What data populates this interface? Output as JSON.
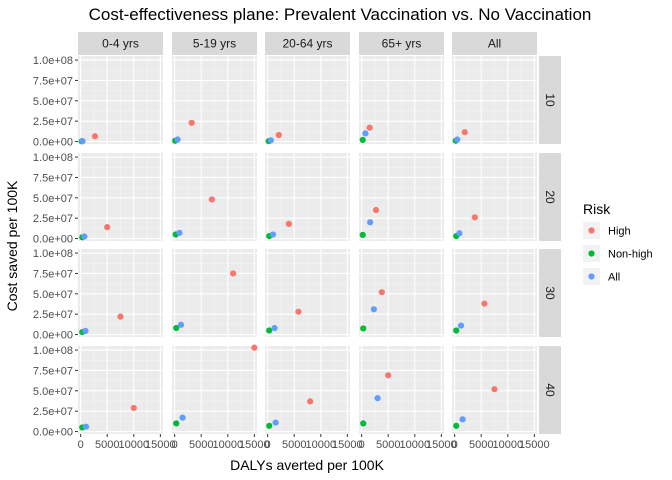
{
  "chart_data": {
    "type": "scatter",
    "title": "Cost-effectiveness plane: Prevalent Vaccination vs. No Vaccination",
    "xlabel": "DALYs averted per 100K",
    "ylabel": "Cost saved per 100K",
    "xlim": [
      -500,
      15500
    ],
    "ylim": [
      -3000000,
      105000000
    ],
    "x_ticks": [
      0,
      5000,
      10000,
      15000
    ],
    "x_tick_labels": [
      "0",
      "5000",
      "10000",
      "15000"
    ],
    "y_ticks": [
      0,
      25000000,
      50000000,
      75000000,
      100000000
    ],
    "y_tick_labels": [
      "0.0e+00",
      "2.5e+07",
      "5.0e+07",
      "7.5e+07",
      "1.0e+08"
    ],
    "columns": [
      "0-4 yrs",
      "5-19 yrs",
      "20-64 yrs",
      "65+ yrs",
      "All"
    ],
    "rows": [
      "10",
      "20",
      "30",
      "40"
    ],
    "grid": true,
    "legend": {
      "title": "Risk",
      "position": "right",
      "entries": [
        {
          "name": "High",
          "color": "#F8766D"
        },
        {
          "name": "Non-high",
          "color": "#00BA38"
        },
        {
          "name": "All",
          "color": "#619CFF"
        }
      ]
    },
    "series": [
      {
        "name": "High",
        "color": "#F8766D",
        "points": [
          {
            "row": "10",
            "col": "0-4 yrs",
            "x": 2700,
            "y": 6500000
          },
          {
            "row": "10",
            "col": "5-19 yrs",
            "x": 3200,
            "y": 23000000
          },
          {
            "row": "10",
            "col": "20-64 yrs",
            "x": 2100,
            "y": 8000000
          },
          {
            "row": "10",
            "col": "65+ yrs",
            "x": 1500,
            "y": 17000000
          },
          {
            "row": "10",
            "col": "All",
            "x": 1900,
            "y": 11500000
          },
          {
            "row": "20",
            "col": "0-4 yrs",
            "x": 5000,
            "y": 14000000
          },
          {
            "row": "20",
            "col": "5-19 yrs",
            "x": 7000,
            "y": 48000000
          },
          {
            "row": "20",
            "col": "20-64 yrs",
            "x": 4000,
            "y": 18000000
          },
          {
            "row": "20",
            "col": "65+ yrs",
            "x": 2700,
            "y": 35000000
          },
          {
            "row": "20",
            "col": "All",
            "x": 3800,
            "y": 26000000
          },
          {
            "row": "30",
            "col": "0-4 yrs",
            "x": 7500,
            "y": 22000000
          },
          {
            "row": "30",
            "col": "5-19 yrs",
            "x": 11000,
            "y": 75000000
          },
          {
            "row": "30",
            "col": "20-64 yrs",
            "x": 5800,
            "y": 28000000
          },
          {
            "row": "30",
            "col": "65+ yrs",
            "x": 3800,
            "y": 52000000
          },
          {
            "row": "30",
            "col": "All",
            "x": 5600,
            "y": 38000000
          },
          {
            "row": "40",
            "col": "0-4 yrs",
            "x": 10000,
            "y": 29000000
          },
          {
            "row": "40",
            "col": "5-19 yrs",
            "x": 15000,
            "y": 103000000
          },
          {
            "row": "40",
            "col": "20-64 yrs",
            "x": 8000,
            "y": 37000000
          },
          {
            "row": "40",
            "col": "65+ yrs",
            "x": 5000,
            "y": 69000000
          },
          {
            "row": "40",
            "col": "All",
            "x": 7500,
            "y": 52000000
          }
        ]
      },
      {
        "name": "Non-high",
        "color": "#00BA38",
        "points": [
          {
            "row": "10",
            "col": "0-4 yrs",
            "x": 200,
            "y": 300000
          },
          {
            "row": "10",
            "col": "5-19 yrs",
            "x": 100,
            "y": 1000000
          },
          {
            "row": "10",
            "col": "20-64 yrs",
            "x": 200,
            "y": 500000
          },
          {
            "row": "10",
            "col": "65+ yrs",
            "x": 200,
            "y": 2000000
          },
          {
            "row": "10",
            "col": "All",
            "x": 200,
            "y": 1000000
          },
          {
            "row": "20",
            "col": "0-4 yrs",
            "x": 300,
            "y": 1500000
          },
          {
            "row": "20",
            "col": "5-19 yrs",
            "x": 200,
            "y": 5000000
          },
          {
            "row": "20",
            "col": "20-64 yrs",
            "x": 300,
            "y": 3000000
          },
          {
            "row": "20",
            "col": "65+ yrs",
            "x": 200,
            "y": 4500000
          },
          {
            "row": "20",
            "col": "All",
            "x": 300,
            "y": 3000000
          },
          {
            "row": "30",
            "col": "0-4 yrs",
            "x": 300,
            "y": 3000000
          },
          {
            "row": "30",
            "col": "5-19 yrs",
            "x": 300,
            "y": 8000000
          },
          {
            "row": "30",
            "col": "20-64 yrs",
            "x": 300,
            "y": 5000000
          },
          {
            "row": "30",
            "col": "65+ yrs",
            "x": 300,
            "y": 7500000
          },
          {
            "row": "30",
            "col": "All",
            "x": 300,
            "y": 5000000
          },
          {
            "row": "40",
            "col": "0-4 yrs",
            "x": 300,
            "y": 5000000
          },
          {
            "row": "40",
            "col": "5-19 yrs",
            "x": 300,
            "y": 10000000
          },
          {
            "row": "40",
            "col": "20-64 yrs",
            "x": 300,
            "y": 7000000
          },
          {
            "row": "40",
            "col": "65+ yrs",
            "x": 300,
            "y": 10000000
          },
          {
            "row": "40",
            "col": "All",
            "x": 300,
            "y": 7000000
          }
        ]
      },
      {
        "name": "All",
        "color": "#619CFF",
        "points": [
          {
            "row": "10",
            "col": "0-4 yrs",
            "x": 350,
            "y": 500000
          },
          {
            "row": "10",
            "col": "5-19 yrs",
            "x": 550,
            "y": 2500000
          },
          {
            "row": "10",
            "col": "20-64 yrs",
            "x": 600,
            "y": 1500000
          },
          {
            "row": "10",
            "col": "65+ yrs",
            "x": 700,
            "y": 10000000
          },
          {
            "row": "10",
            "col": "All",
            "x": 500,
            "y": 2500000
          },
          {
            "row": "20",
            "col": "0-4 yrs",
            "x": 700,
            "y": 2500000
          },
          {
            "row": "20",
            "col": "5-19 yrs",
            "x": 900,
            "y": 7000000
          },
          {
            "row": "20",
            "col": "20-64 yrs",
            "x": 1000,
            "y": 5000000
          },
          {
            "row": "20",
            "col": "65+ yrs",
            "x": 1600,
            "y": 20000000
          },
          {
            "row": "20",
            "col": "All",
            "x": 900,
            "y": 6500000
          },
          {
            "row": "30",
            "col": "0-4 yrs",
            "x": 900,
            "y": 4500000
          },
          {
            "row": "30",
            "col": "5-19 yrs",
            "x": 1200,
            "y": 12000000
          },
          {
            "row": "30",
            "col": "20-64 yrs",
            "x": 1300,
            "y": 8000000
          },
          {
            "row": "30",
            "col": "65+ yrs",
            "x": 2300,
            "y": 31000000
          },
          {
            "row": "30",
            "col": "All",
            "x": 1200,
            "y": 11000000
          },
          {
            "row": "40",
            "col": "0-4 yrs",
            "x": 1000,
            "y": 6000000
          },
          {
            "row": "40",
            "col": "5-19 yrs",
            "x": 1500,
            "y": 17000000
          },
          {
            "row": "40",
            "col": "20-64 yrs",
            "x": 1500,
            "y": 11000000
          },
          {
            "row": "40",
            "col": "65+ yrs",
            "x": 3000,
            "y": 41000000
          },
          {
            "row": "40",
            "col": "All",
            "x": 1500,
            "y": 15000000
          }
        ]
      }
    ]
  }
}
